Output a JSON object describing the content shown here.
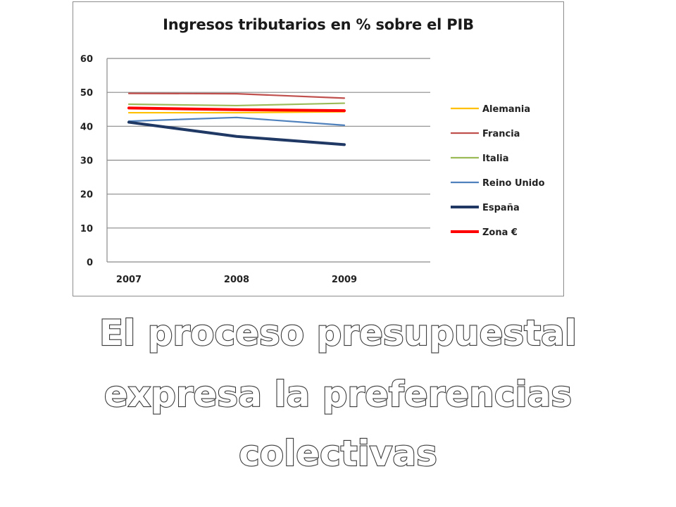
{
  "chart_data": {
    "type": "line",
    "title": "Ingresos tributarios en % sobre el PIB",
    "xlabel": "",
    "ylabel": "",
    "categories": [
      "2007",
      "2008",
      "2009"
    ],
    "ylim": [
      0,
      60
    ],
    "yticks": [
      0,
      10,
      20,
      30,
      40,
      50,
      60
    ],
    "grid": true,
    "legend_position": "right",
    "series": [
      {
        "name": "Alemania",
        "values": [
          44.0,
          44.0,
          44.3
        ],
        "color": "#ffc000"
      },
      {
        "name": "Francia",
        "values": [
          49.7,
          49.6,
          48.3
        ],
        "color": "#c0504d"
      },
      {
        "name": "Italia",
        "values": [
          46.5,
          46.1,
          46.8
        ],
        "color": "#9bbb59"
      },
      {
        "name": "Reino Unido",
        "values": [
          41.5,
          42.6,
          40.3
        ],
        "color": "#4f81bd"
      },
      {
        "name": "España",
        "values": [
          41.2,
          37.0,
          34.6
        ],
        "color": "#1f3864"
      },
      {
        "name": "Zona €",
        "values": [
          45.4,
          44.9,
          44.6
        ],
        "color": "#ff0000"
      }
    ]
  },
  "caption": {
    "line1": "El proceso presupuestal",
    "line2": "expresa la preferencias",
    "line3": "colectivas"
  }
}
